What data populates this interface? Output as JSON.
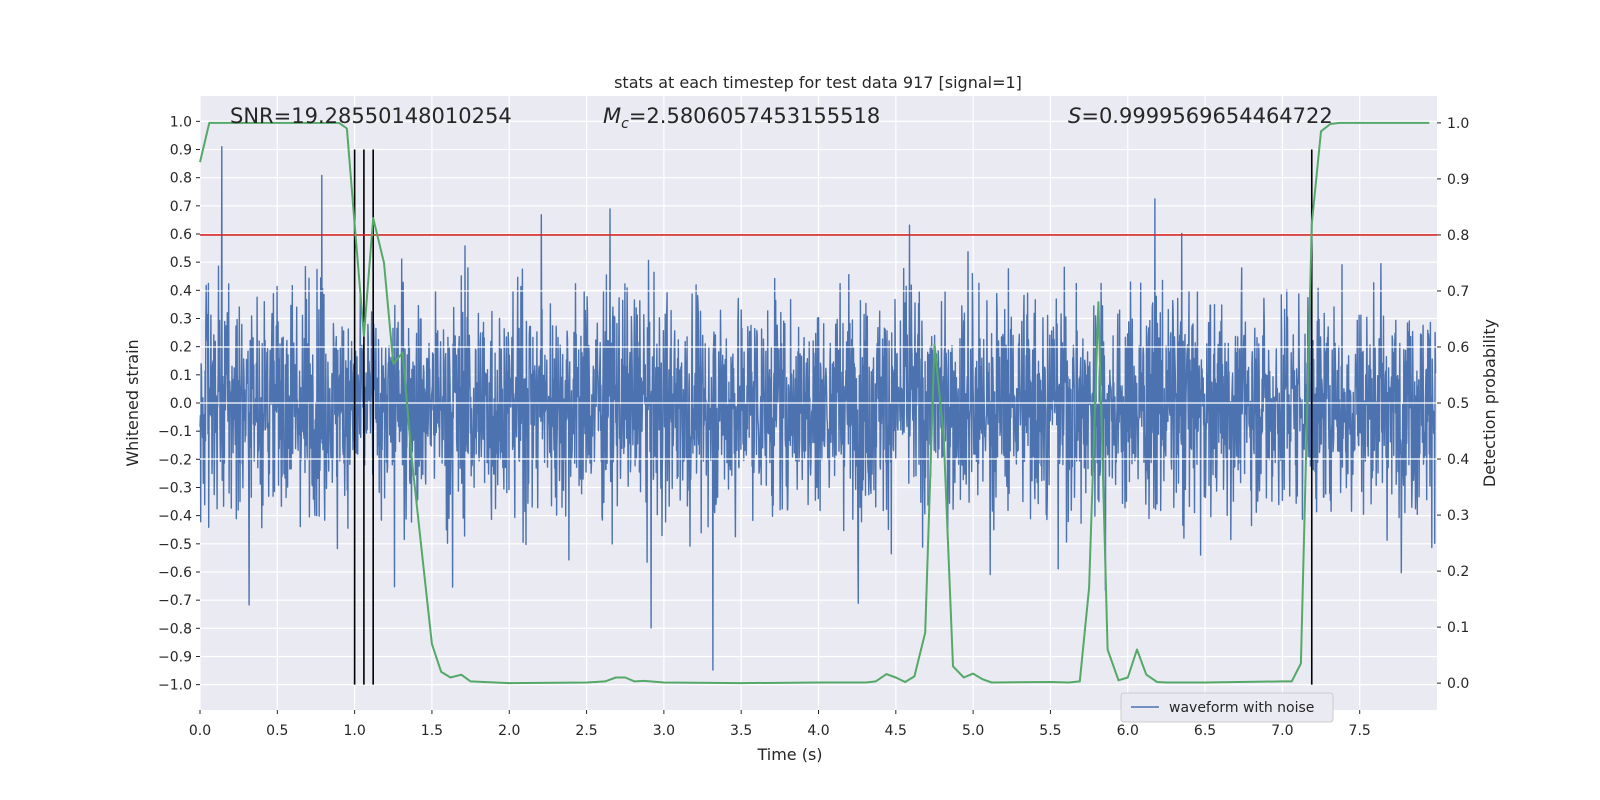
{
  "chart_data": {
    "type": "line",
    "title": "stats at each timestep for test data 917 [signal=1]",
    "xlabel": "Time (s)",
    "ylabel": "Whitened strain",
    "y2label": "Detection probability",
    "xlim": [
      0.0,
      8.0
    ],
    "ylim": [
      -1.09,
      1.09
    ],
    "y2lim": [
      -0.048,
      1.048
    ],
    "xticks": [
      0.0,
      0.5,
      1.0,
      1.5,
      2.0,
      2.5,
      3.0,
      3.5,
      4.0,
      4.5,
      5.0,
      5.5,
      6.0,
      6.5,
      7.0,
      7.5
    ],
    "xtick_labels": [
      "0.0",
      "0.5",
      "1.0",
      "1.5",
      "2.0",
      "2.5",
      "3.0",
      "3.5",
      "4.0",
      "4.5",
      "5.0",
      "5.5",
      "6.0",
      "6.5",
      "7.0",
      "7.5"
    ],
    "yticks": [
      1.0,
      0.9,
      0.8,
      0.7,
      0.6,
      0.5,
      0.4,
      0.3,
      0.2,
      0.1,
      0.0,
      -0.1,
      -0.2,
      -0.3,
      -0.4,
      -0.5,
      -0.6,
      -0.7,
      -0.8,
      -0.9,
      -1.0
    ],
    "ytick_labels": [
      "1.0",
      "0.9",
      "0.8",
      "0.7",
      "0.6",
      "0.5",
      "0.4",
      "0.3",
      "0.2",
      "0.1",
      "0.0",
      "−0.1",
      "−0.2",
      "−0.3",
      "−0.4",
      "−0.5",
      "−0.6",
      "−0.7",
      "−0.8",
      "−0.9",
      "−1.0"
    ],
    "y2ticks": [
      1.0,
      0.9,
      0.8,
      0.7,
      0.6,
      0.5,
      0.4,
      0.3,
      0.2,
      0.1,
      0.0
    ],
    "y2tick_labels": [
      "1.0",
      "0.9",
      "0.8",
      "0.7",
      "0.6",
      "0.5",
      "0.4",
      "0.3",
      "0.2",
      "0.1",
      "0.0"
    ],
    "annotations": {
      "snr": "SNR=19.28550148010254",
      "mc_prefix": "M",
      "mc_sub": "c",
      "mc_value": "=2.5806057453155518",
      "s_prefix": "S",
      "s_value": "=0.9999569654464722"
    },
    "legend": {
      "label": "waveform with noise",
      "location": "lower-right"
    },
    "threshold": {
      "value": 0.8,
      "axis": "y2",
      "color": "#d62728"
    },
    "vertical_lines": [
      1.0,
      1.06,
      1.12,
      7.19
    ],
    "series": [
      {
        "name": "waveform with noise",
        "axis": "y",
        "color": "#4c72b0",
        "style": "noise",
        "typical_amplitude": 0.32,
        "max_value": 0.91,
        "min_value": -1.0
      },
      {
        "name": "detection probability",
        "axis": "y2",
        "color": "#55a868",
        "x": [
          0.0,
          0.06,
          0.12,
          0.5,
          0.9,
          0.95,
          1.0,
          1.06,
          1.12,
          1.19,
          1.25,
          1.31,
          1.37,
          1.44,
          1.5,
          1.56,
          1.62,
          1.69,
          1.75,
          2.0,
          2.5,
          2.62,
          2.69,
          2.75,
          2.81,
          2.87,
          3.0,
          3.5,
          4.0,
          4.31,
          4.37,
          4.44,
          4.5,
          4.56,
          4.62,
          4.69,
          4.75,
          4.81,
          4.87,
          4.94,
          5.0,
          5.06,
          5.12,
          5.5,
          5.62,
          5.69,
          5.75,
          5.81,
          5.87,
          5.94,
          6.0,
          6.06,
          6.12,
          6.19,
          6.25,
          6.5,
          7.0,
          7.06,
          7.12,
          7.19,
          7.25,
          7.31,
          7.37,
          7.5,
          7.95
        ],
        "y": [
          0.93,
          1.0,
          1.0,
          1.0,
          1.0,
          0.99,
          0.82,
          0.62,
          0.83,
          0.75,
          0.57,
          0.59,
          0.4,
          0.22,
          0.07,
          0.02,
          0.01,
          0.015,
          0.003,
          0.0,
          0.001,
          0.003,
          0.01,
          0.01,
          0.003,
          0.004,
          0.001,
          0.0,
          0.001,
          0.001,
          0.003,
          0.016,
          0.01,
          0.002,
          0.012,
          0.09,
          0.605,
          0.44,
          0.03,
          0.01,
          0.017,
          0.007,
          0.001,
          0.002,
          0.001,
          0.003,
          0.17,
          0.68,
          0.06,
          0.005,
          0.01,
          0.06,
          0.015,
          0.002,
          0.001,
          0.001,
          0.003,
          0.003,
          0.035,
          0.82,
          0.985,
          0.998,
          1.0,
          1.0,
          1.0
        ]
      }
    ]
  }
}
